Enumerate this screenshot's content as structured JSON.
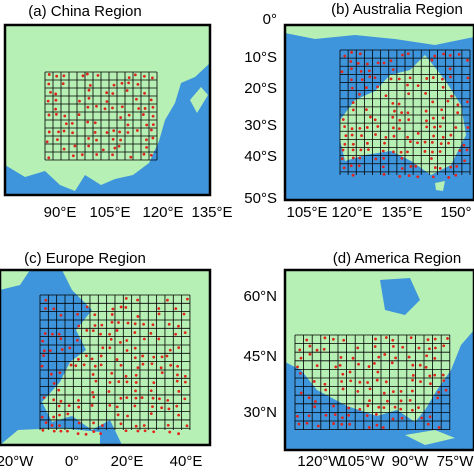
{
  "panels": [
    {
      "title": "(a) China Region",
      "xticks": [
        "90°E",
        "105°E",
        "120°E",
        "135°E"
      ],
      "yticks": []
    },
    {
      "title": "(b) Australia Region",
      "xticks": [
        "105°E",
        "120°E",
        "135°E",
        "150°"
      ],
      "yticks": [
        "0°",
        "10°S",
        "20°S",
        "30°S",
        "40°S",
        "50°S"
      ]
    },
    {
      "title": "(c) Europe Region",
      "xticks": [
        "20°W",
        "0°",
        "20°E",
        "40°E"
      ],
      "yticks": []
    },
    {
      "title": "(d) America Region",
      "xticks": [
        "120°W",
        "105°W",
        "90°W",
        "75°W"
      ],
      "yticks": [
        "60°N",
        "45°N",
        "30°N"
      ]
    }
  ]
}
